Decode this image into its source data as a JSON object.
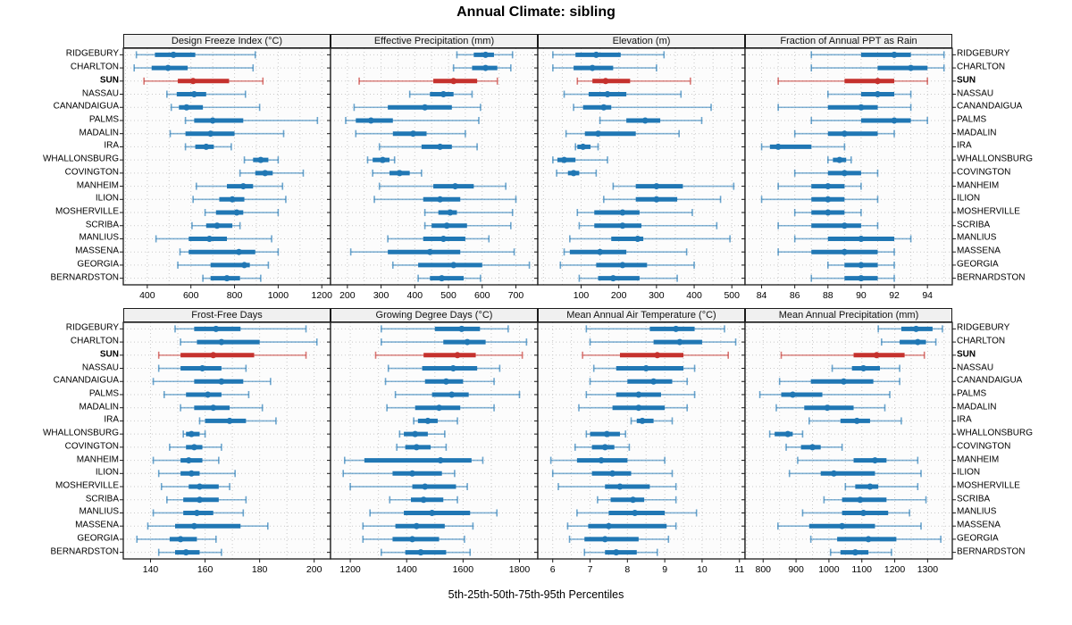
{
  "title": "Annual Climate: sibling",
  "caption": "5th-25th-50th-75th-95th Percentiles",
  "highlight_station": "SUN",
  "colors": {
    "series": "#2077b4",
    "highlight": "#c5312d",
    "grid": "#c9c9c9",
    "border": "#1a1a1a",
    "strip_bg": "#f0f0f0",
    "panel_bg": "#fcfcfc"
  },
  "chart_data": {
    "type": "percentile-interval",
    "percentile_labels": [
      "5th",
      "25th",
      "50th",
      "75th",
      "95th"
    ],
    "legend_note": "each row shows 5th-25th-50th-75th-95th percentiles; dot = median, thick bar = 25th-75th, thin line = 5th-95th",
    "stations": [
      "RIDGEBURY",
      "CHARLTON",
      "SUN",
      "NASSAU",
      "CANANDAIGUA",
      "PALMS",
      "MADALIN",
      "IRA",
      "WHALLONSBURG",
      "COVINGTON",
      "MANHEIM",
      "ILION",
      "MOSHERVILLE",
      "SCRIBA",
      "MANLIUS",
      "MASSENA",
      "GEORGIA",
      "BERNARDSTON"
    ],
    "panels": [
      {
        "title": "Design Freeze Index (°C)",
        "xlim": [
          290,
          1240
        ],
        "ticks": [
          400,
          600,
          800,
          1000,
          1200
        ],
        "values": [
          [
            350,
            435,
            520,
            620,
            895
          ],
          [
            340,
            420,
            495,
            585,
            885
          ],
          [
            385,
            540,
            610,
            775,
            930
          ],
          [
            490,
            535,
            615,
            670,
            850
          ],
          [
            510,
            545,
            580,
            655,
            915
          ],
          [
            575,
            615,
            700,
            840,
            1180
          ],
          [
            505,
            575,
            690,
            800,
            1025
          ],
          [
            575,
            620,
            670,
            705,
            785
          ],
          [
            845,
            885,
            920,
            955,
            1000
          ],
          [
            825,
            895,
            940,
            975,
            1115
          ],
          [
            625,
            765,
            840,
            885,
            1020
          ],
          [
            610,
            730,
            790,
            845,
            1035
          ],
          [
            665,
            715,
            810,
            840,
            1000
          ],
          [
            605,
            670,
            720,
            790,
            825
          ],
          [
            440,
            590,
            685,
            765,
            970
          ],
          [
            550,
            590,
            820,
            895,
            1000
          ],
          [
            540,
            690,
            845,
            870,
            955
          ],
          [
            655,
            690,
            765,
            825,
            920
          ]
        ]
      },
      {
        "title": "Effective Precipitation (mm)",
        "xlim": [
          150,
          765
        ],
        "ticks": [
          200,
          300,
          400,
          500,
          600,
          700
        ],
        "values": [
          [
            525,
            575,
            610,
            635,
            690
          ],
          [
            515,
            570,
            610,
            645,
            685
          ],
          [
            235,
            455,
            515,
            585,
            645
          ],
          [
            385,
            445,
            485,
            515,
            570
          ],
          [
            220,
            320,
            430,
            510,
            595
          ],
          [
            195,
            225,
            270,
            335,
            590
          ],
          [
            225,
            335,
            395,
            435,
            550
          ],
          [
            295,
            420,
            475,
            510,
            585
          ],
          [
            260,
            275,
            305,
            325,
            340
          ],
          [
            275,
            325,
            355,
            385,
            420
          ],
          [
            295,
            455,
            520,
            575,
            670
          ],
          [
            280,
            425,
            475,
            535,
            700
          ],
          [
            430,
            470,
            505,
            525,
            690
          ],
          [
            430,
            450,
            495,
            555,
            685
          ],
          [
            320,
            425,
            485,
            550,
            620
          ],
          [
            210,
            320,
            445,
            535,
            695
          ],
          [
            335,
            410,
            515,
            600,
            740
          ],
          [
            410,
            445,
            480,
            545,
            595
          ]
        ]
      },
      {
        "title": "Elevation (m)",
        "xlim": [
          -15,
          535
        ],
        "ticks": [
          100,
          200,
          300,
          400,
          500
        ],
        "values": [
          [
            25,
            85,
            140,
            205,
            320
          ],
          [
            25,
            80,
            130,
            185,
            300
          ],
          [
            90,
            130,
            165,
            230,
            390
          ],
          [
            55,
            120,
            170,
            220,
            365
          ],
          [
            80,
            105,
            160,
            180,
            445
          ],
          [
            150,
            220,
            270,
            310,
            420
          ],
          [
            60,
            110,
            145,
            245,
            360
          ],
          [
            85,
            90,
            105,
            125,
            145
          ],
          [
            25,
            37,
            55,
            85,
            170
          ],
          [
            35,
            65,
            80,
            95,
            140
          ],
          [
            185,
            245,
            300,
            370,
            505
          ],
          [
            160,
            245,
            300,
            355,
            470
          ],
          [
            90,
            135,
            210,
            255,
            395
          ],
          [
            95,
            135,
            210,
            260,
            460
          ],
          [
            70,
            180,
            250,
            265,
            495
          ],
          [
            55,
            70,
            150,
            220,
            380
          ],
          [
            45,
            140,
            210,
            275,
            400
          ],
          [
            95,
            145,
            185,
            255,
            355
          ]
        ]
      },
      {
        "title": "Fraction of Annual PPT as Rain",
        "xlim": [
          83,
          95.5
        ],
        "ticks": [
          84,
          86,
          88,
          90,
          92,
          94
        ],
        "values": [
          [
            87,
            90,
            92,
            93,
            95
          ],
          [
            87,
            91,
            93,
            94,
            95
          ],
          [
            85,
            89,
            91,
            92,
            94
          ],
          [
            88,
            90,
            91,
            92,
            93
          ],
          [
            85,
            88,
            90,
            91,
            93
          ],
          [
            87,
            90,
            92,
            93,
            94
          ],
          [
            86,
            88,
            89,
            91,
            92
          ],
          [
            84,
            84.5,
            85,
            87,
            89
          ],
          [
            88,
            88.3,
            88.7,
            89.1,
            89.4
          ],
          [
            86,
            88,
            89,
            90,
            91
          ],
          [
            85,
            87,
            88,
            89,
            90
          ],
          [
            84,
            87,
            88,
            89,
            91
          ],
          [
            86,
            87,
            88,
            89,
            90
          ],
          [
            85,
            87,
            89,
            90,
            91
          ],
          [
            86,
            88,
            90,
            92,
            93
          ],
          [
            85,
            87,
            89,
            91,
            92
          ],
          [
            88,
            89,
            90,
            91,
            92
          ],
          [
            87,
            89,
            90,
            91,
            92
          ]
        ]
      },
      {
        "title": "Frost-Free Days",
        "xlim": [
          130,
          206
        ],
        "ticks": [
          140,
          160,
          180,
          200
        ],
        "values": [
          [
            149,
            156,
            164,
            173,
            197
          ],
          [
            151,
            157,
            166,
            180,
            201
          ],
          [
            143,
            151,
            163,
            178,
            197
          ],
          [
            143,
            151,
            159,
            166,
            175
          ],
          [
            141,
            156,
            166,
            174,
            184
          ],
          [
            145,
            153,
            161,
            166,
            176
          ],
          [
            151,
            156,
            163,
            169,
            181
          ],
          [
            158,
            160,
            169,
            175,
            186
          ],
          [
            152,
            153,
            155,
            158,
            160
          ],
          [
            147,
            153,
            156,
            159,
            166
          ],
          [
            141,
            151,
            154,
            159,
            165
          ],
          [
            143,
            151,
            155,
            158,
            171
          ],
          [
            144,
            154,
            158,
            165,
            169
          ],
          [
            146,
            152,
            158,
            165,
            175
          ],
          [
            141,
            152,
            157,
            163,
            174
          ],
          [
            139,
            149,
            156,
            173,
            183
          ],
          [
            135,
            147,
            151,
            157,
            164
          ],
          [
            143,
            149,
            153,
            158,
            166
          ]
        ]
      },
      {
        "title": "Growing Degree Days (°C)",
        "xlim": [
          1130,
          1865
        ],
        "ticks": [
          1200,
          1400,
          1600,
          1800
        ],
        "values": [
          [
            1310,
            1500,
            1595,
            1660,
            1760
          ],
          [
            1310,
            1530,
            1615,
            1680,
            1825
          ],
          [
            1290,
            1460,
            1580,
            1645,
            1810
          ],
          [
            1335,
            1455,
            1565,
            1650,
            1730
          ],
          [
            1325,
            1465,
            1540,
            1600,
            1710
          ],
          [
            1360,
            1490,
            1560,
            1620,
            1800
          ],
          [
            1330,
            1430,
            1515,
            1590,
            1710
          ],
          [
            1425,
            1440,
            1475,
            1510,
            1580
          ],
          [
            1375,
            1390,
            1430,
            1475,
            1535
          ],
          [
            1365,
            1395,
            1435,
            1485,
            1540
          ],
          [
            1180,
            1250,
            1520,
            1630,
            1670
          ],
          [
            1175,
            1350,
            1420,
            1525,
            1570
          ],
          [
            1200,
            1420,
            1465,
            1575,
            1615
          ],
          [
            1340,
            1415,
            1460,
            1530,
            1580
          ],
          [
            1270,
            1390,
            1490,
            1625,
            1720
          ],
          [
            1245,
            1360,
            1435,
            1535,
            1635
          ],
          [
            1245,
            1350,
            1420,
            1515,
            1605
          ],
          [
            1310,
            1395,
            1450,
            1540,
            1625
          ]
        ]
      },
      {
        "title": "Mean Annual Air Temperature (°C)",
        "xlim": [
          5.6,
          11.15
        ],
        "ticks": [
          6,
          7,
          8,
          9,
          10,
          11
        ],
        "values": [
          [
            6.9,
            8.6,
            9.3,
            9.8,
            10.6
          ],
          [
            7.0,
            8.7,
            9.4,
            10.0,
            10.9
          ],
          [
            6.8,
            7.8,
            8.8,
            9.5,
            10.7
          ],
          [
            7.1,
            7.7,
            8.5,
            9.5,
            9.8
          ],
          [
            7.0,
            8.0,
            8.7,
            9.2,
            9.6
          ],
          [
            6.9,
            7.7,
            8.3,
            8.9,
            9.8
          ],
          [
            6.7,
            7.6,
            8.3,
            9.0,
            9.6
          ],
          [
            8.1,
            8.25,
            8.4,
            8.7,
            9.2
          ],
          [
            6.9,
            7.0,
            7.45,
            7.8,
            7.95
          ],
          [
            6.6,
            7.05,
            7.4,
            7.65,
            8.05
          ],
          [
            5.95,
            6.65,
            7.3,
            8.0,
            9.0
          ],
          [
            6.0,
            7.05,
            7.6,
            8.1,
            9.2
          ],
          [
            6.15,
            7.4,
            7.8,
            8.6,
            9.3
          ],
          [
            7.2,
            7.55,
            8.15,
            8.45,
            9.3
          ],
          [
            6.65,
            7.5,
            8.2,
            9.0,
            9.85
          ],
          [
            6.4,
            6.95,
            7.5,
            9.05,
            9.3
          ],
          [
            6.45,
            6.85,
            7.4,
            8.3,
            9.1
          ],
          [
            6.85,
            7.4,
            7.7,
            8.25,
            8.8
          ]
        ]
      },
      {
        "title": "Mean Annual Precipitation (mm)",
        "xlim": [
          745,
          1375
        ],
        "ticks": [
          800,
          900,
          1000,
          1100,
          1200,
          1300
        ],
        "values": [
          [
            1150,
            1220,
            1265,
            1315,
            1345
          ],
          [
            1160,
            1215,
            1270,
            1295,
            1325
          ],
          [
            855,
            1075,
            1145,
            1230,
            1290
          ],
          [
            1010,
            1070,
            1105,
            1155,
            1215
          ],
          [
            850,
            945,
            1045,
            1135,
            1215
          ],
          [
            790,
            855,
            890,
            980,
            1185
          ],
          [
            840,
            925,
            995,
            1075,
            1170
          ],
          [
            940,
            1035,
            1085,
            1125,
            1220
          ],
          [
            820,
            835,
            875,
            890,
            920
          ],
          [
            870,
            915,
            950,
            975,
            1040
          ],
          [
            905,
            1075,
            1140,
            1175,
            1270
          ],
          [
            880,
            975,
            1015,
            1140,
            1280
          ],
          [
            1050,
            1080,
            1125,
            1150,
            1270
          ],
          [
            985,
            1040,
            1095,
            1175,
            1295
          ],
          [
            920,
            1040,
            1105,
            1180,
            1245
          ],
          [
            845,
            940,
            1040,
            1140,
            1280
          ],
          [
            945,
            1025,
            1120,
            1205,
            1340
          ],
          [
            1005,
            1035,
            1080,
            1120,
            1190
          ]
        ]
      }
    ]
  }
}
